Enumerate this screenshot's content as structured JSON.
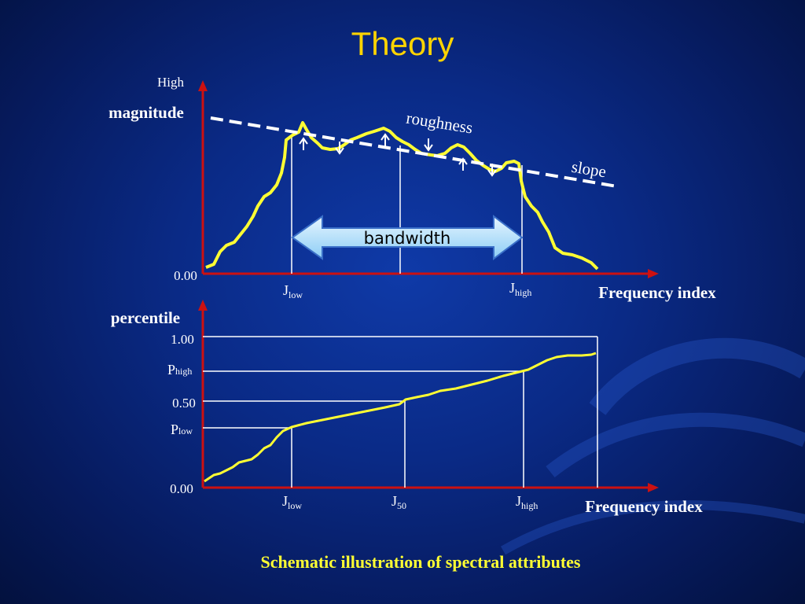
{
  "slide": {
    "title": "Theory",
    "caption": "Schematic illustration of spectral attributes"
  },
  "top_chart": {
    "y_top_label": "High",
    "y_label": "magnitude",
    "y_zero_label": "0.00",
    "x_label": "Frequency index",
    "j_low": {
      "main": "J",
      "sub": "low"
    },
    "j_high": {
      "main": "J",
      "sub": "high"
    },
    "roughness_label": "roughness",
    "slope_label": "slope",
    "bandwidth_label": "bandwidth"
  },
  "bottom_chart": {
    "y_label": "percentile",
    "tick_100": "1.00",
    "tick_050": "0.50",
    "tick_000": "0.00",
    "p_high": {
      "main": "P",
      "sub": "high"
    },
    "p_low": {
      "main": "P",
      "sub": "low"
    },
    "x_label": "Frequency index",
    "j_low": {
      "main": "J",
      "sub": "low"
    },
    "j_50": {
      "main": "J",
      "sub": "50"
    },
    "j_high": {
      "main": "J",
      "sub": "high"
    }
  },
  "colors": {
    "title": "#ffd400",
    "curve": "#ffff33",
    "axis": "#cc1111",
    "caption": "#ffff33",
    "bandwidth_arrow": "#b8e4ff"
  }
}
